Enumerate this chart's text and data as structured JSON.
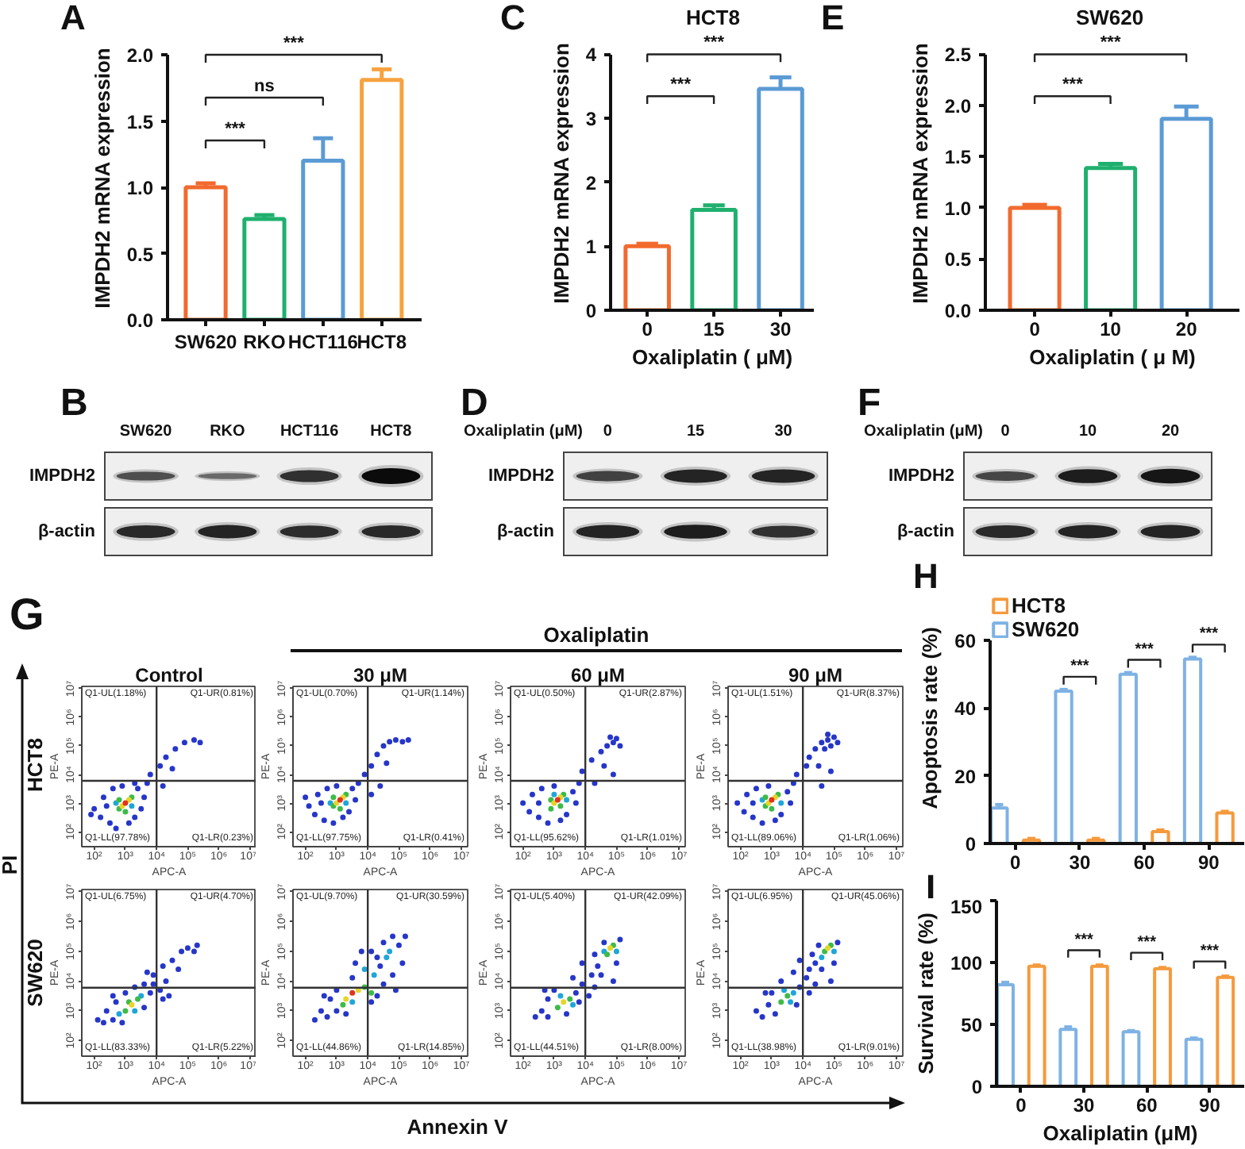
{
  "chart_data": [
    {
      "type": "bar",
      "annotations": [
        "A",
        "***",
        "ns",
        "***"
      ],
      "ylabel": "IMPDH2 mRNA expression",
      "categories": [
        "SW620",
        "RKO",
        "HCT116",
        "HCT8"
      ],
      "values": [
        1.0,
        0.76,
        1.2,
        1.81
      ],
      "colors": [
        "#f26a2e",
        "#1fb06e",
        "#5b9bd5",
        "#f7a23f"
      ],
      "errors": [
        [
          1.0,
          1.03
        ],
        [
          0.76,
          0.79
        ],
        [
          1.2,
          1.37
        ],
        [
          1.81,
          1.89
        ]
      ],
      "ylim": [
        0,
        2
      ],
      "yticks": [
        {
          "value": 0,
          "label": "0.0"
        },
        {
          "value": 0.5,
          "label": "0.5"
        },
        {
          "value": 1,
          "label": "1.0"
        },
        {
          "value": 1.5,
          "label": "1.5"
        },
        {
          "value": 2,
          "label": "2.0"
        }
      ]
    },
    {
      "type": "bar",
      "title": "HCT8",
      "annotations": [
        "C",
        "***",
        "***"
      ],
      "xlabel": "Oxaliplatin ( μM)",
      "ylabel": "IMPDH2 mRNA expression",
      "categories": [
        "0",
        "15",
        "30"
      ],
      "values": [
        1.0,
        1.57,
        3.46
      ],
      "colors": [
        "#f26a2e",
        "#1fb06e",
        "#5b9bd5"
      ],
      "errors": [
        [
          1.0,
          1.04
        ],
        [
          1.57,
          1.64
        ],
        [
          3.46,
          3.64
        ]
      ],
      "ylim": [
        0,
        4
      ],
      "yticks": [
        0,
        1,
        2,
        3,
        4
      ]
    },
    {
      "type": "bar",
      "title": "SW620",
      "annotations": [
        "E",
        "***",
        "***"
      ],
      "xlabel": "Oxaliplatin ( μ M)",
      "ylabel": "IMPDH2 mRNA expression",
      "categories": [
        "0",
        "10",
        "20"
      ],
      "values": [
        1.0,
        1.39,
        1.87
      ],
      "colors": [
        "#f26a2e",
        "#1fb06e",
        "#5b9bd5"
      ],
      "errors": [
        [
          1.0,
          1.03
        ],
        [
          1.39,
          1.43
        ],
        [
          1.87,
          1.99
        ]
      ],
      "ylim": [
        0,
        2.5
      ],
      "yticks": [
        {
          "value": 0,
          "label": "0.0"
        },
        {
          "value": 0.5,
          "label": "0.5"
        },
        {
          "value": 1,
          "label": "1.0"
        },
        {
          "value": 1.5,
          "label": "1.5"
        },
        {
          "value": 2,
          "label": "2.0"
        },
        {
          "value": 2.5,
          "label": "2.5"
        }
      ]
    },
    {
      "type": "other",
      "annotations": [
        "B"
      ],
      "categories": [
        "SW620",
        "RKO",
        "HCT116",
        "HCT8"
      ],
      "y_categories": [
        "IMPDH2",
        "β-actin"
      ]
    },
    {
      "type": "other",
      "annotations": [
        "D"
      ],
      "xlabel": "Oxaliplatin (μM)",
      "categories": [
        "0",
        "15",
        "30"
      ],
      "y_categories": [
        "IMPDH2",
        "β-actin"
      ]
    },
    {
      "type": "other",
      "annotations": [
        "F"
      ],
      "xlabel": "Oxaliplatin (μM)",
      "categories": [
        "0",
        "10",
        "20"
      ],
      "y_categories": [
        "IMPDH2",
        "β-actin"
      ]
    },
    {
      "type": "other",
      "annotations": [
        "G",
        "Oxaliplatin",
        "PI",
        "Annexin V"
      ],
      "y_categories": [
        "HCT8",
        "SW620"
      ]
    },
    {
      "type": "scatter",
      "title": "Control",
      "xlabel": "APC-A",
      "ylabel": "PE-A",
      "log": "xy",
      "marker": "circle",
      "xlim": [
        40,
        16000000
      ],
      "ylim": [
        30,
        12000000
      ],
      "xticks": [
        {
          "value": 100,
          "label": "10²"
        },
        {
          "value": 1000,
          "label": "10³"
        },
        {
          "value": 10000,
          "label": "10⁴"
        },
        {
          "value": 100000,
          "label": "10⁵"
        },
        {
          "value": 1000000,
          "label": "10⁶"
        },
        {
          "value": 10000000,
          "label": "10⁷"
        }
      ],
      "yticks": [
        {
          "value": 100,
          "label": "10²"
        },
        {
          "value": 1000,
          "label": "10³"
        },
        {
          "value": 10000,
          "label": "10⁴"
        },
        {
          "value": 100000,
          "label": "10⁵"
        },
        {
          "value": 1000000,
          "label": "10⁶"
        },
        {
          "value": 10000000,
          "label": "10⁷"
        }
      ],
      "ref_lines": [
        {
          "axis": "x",
          "value": 10000
        },
        {
          "axis": "y",
          "value": 6000
        }
      ],
      "annotations": [
        "Q1-UL(1.18%)",
        "Q1-UR(0.81%)",
        "Q1-LL(97.78%)",
        "Q1-LR(0.23%)"
      ],
      "series": [
        {
          "color": "#2636c9",
          "x": [
            100,
            160,
            200,
            320,
            400,
            500,
            790,
            2000,
            2500,
            4000,
            3200,
            250,
            79,
            1300,
            5000,
            2000,
            6300,
            13000,
            20000,
            40000,
            79000,
            160000,
            250000,
            32000,
            16000
          ],
          "values": [
            630,
            320,
            1600,
            200,
            3200,
            130,
            4000,
            320,
            3200,
            1600,
            630,
            790,
            400,
            200,
            5000,
            5000,
            10000,
            20000,
            40000,
            79000,
            130000,
            160000,
            130000,
            16000,
            4000
          ]
        },
        {
          "color": "#1fa6d8",
          "x": [
            1600,
            500
          ],
          "values": [
            790,
            1000
          ]
        },
        {
          "color": "#3dbb48",
          "x": [
            630,
            1600,
            1000,
            630
          ],
          "values": [
            630,
            1600,
            500,
            1300
          ]
        },
        {
          "color": "#e6d52a",
          "x": [
            790,
            1300
          ],
          "values": [
            790,
            1300
          ]
        },
        {
          "color": "#e0331d",
          "x": [
            1000
          ],
          "values": [
            1000
          ]
        }
      ]
    },
    {
      "type": "scatter",
      "title": "30 μM",
      "xlabel": "APC-A",
      "ylabel": "PE-A",
      "log": "xy",
      "marker": "circle",
      "xlim": [
        40,
        16000000
      ],
      "ylim": [
        30,
        12000000
      ],
      "xticks": [
        {
          "value": 100,
          "label": "10²"
        },
        {
          "value": 1000,
          "label": "10³"
        },
        {
          "value": 10000,
          "label": "10⁴"
        },
        {
          "value": 100000,
          "label": "10⁵"
        },
        {
          "value": 1000000,
          "label": "10⁶"
        },
        {
          "value": 10000000,
          "label": "10⁷"
        }
      ],
      "yticks": [
        {
          "value": 100,
          "label": "10²"
        },
        {
          "value": 1000,
          "label": "10³"
        },
        {
          "value": 10000,
          "label": "10⁴"
        },
        {
          "value": 100000,
          "label": "10⁵"
        },
        {
          "value": 1000000,
          "label": "10⁶"
        },
        {
          "value": 10000000,
          "label": "10⁷"
        }
      ],
      "ref_lines": [
        {
          "axis": "x",
          "value": 10000
        },
        {
          "axis": "y",
          "value": 6000
        }
      ],
      "annotations": [
        "Q1-UL(0.70%)",
        "Q1-UR(1.14%)",
        "Q1-LL(97.75%)",
        "Q1-LR(0.41%)"
      ],
      "series": [
        {
          "color": "#2636c9",
          "x": [
            130,
            200,
            250,
            400,
            500,
            790,
            1000,
            2500,
            3200,
            4000,
            320,
            100,
            1600,
            5000,
            7900,
            13000,
            20000,
            32000,
            50000,
            79000,
            130000,
            200000,
            40000,
            25000,
            13000
          ],
          "values": [
            790,
            400,
            2000,
            250,
            3200,
            200,
            4000,
            500,
            3200,
            1300,
            1000,
            1600,
            320,
            5000,
            10000,
            20000,
            50000,
            100000,
            140000,
            160000,
            140000,
            160000,
            25000,
            4000,
            2000
          ]
        },
        {
          "color": "#1fa6d8",
          "x": [
            2000,
            630
          ],
          "values": [
            1000,
            1000
          ]
        },
        {
          "color": "#3dbb48",
          "x": [
            790,
            2000,
            1300,
            790
          ],
          "values": [
            790,
            2000,
            630,
            1600
          ]
        },
        {
          "color": "#e6d52a",
          "x": [
            1000,
            1600
          ],
          "values": [
            1000,
            1600
          ]
        },
        {
          "color": "#e0331d",
          "x": [
            1300
          ],
          "values": [
            1300
          ]
        }
      ]
    },
    {
      "type": "scatter",
      "title": "60 μM",
      "xlabel": "APC-A",
      "ylabel": "PE-A",
      "log": "xy",
      "marker": "circle",
      "xlim": [
        40,
        16000000
      ],
      "ylim": [
        30,
        12000000
      ],
      "xticks": [
        {
          "value": 100,
          "label": "10²"
        },
        {
          "value": 1000,
          "label": "10³"
        },
        {
          "value": 10000,
          "label": "10⁴"
        },
        {
          "value": 100000,
          "label": "10⁵"
        },
        {
          "value": 1000000,
          "label": "10⁶"
        },
        {
          "value": 10000000,
          "label": "10⁷"
        }
      ],
      "yticks": [
        {
          "value": 100,
          "label": "10²"
        },
        {
          "value": 1000,
          "label": "10³"
        },
        {
          "value": 10000,
          "label": "10⁴"
        },
        {
          "value": 100000,
          "label": "10⁵"
        },
        {
          "value": 1000000,
          "label": "10⁶"
        },
        {
          "value": 10000000,
          "label": "10⁷"
        }
      ],
      "ref_lines": [
        {
          "axis": "x",
          "value": 10000
        },
        {
          "axis": "y",
          "value": 6000
        }
      ],
      "annotations": [
        "Q1-UL(0.50%)",
        "Q1-UR(2.87%)",
        "Q1-LL(95.62%)",
        "Q1-LR(1.01%)"
      ],
      "series": [
        {
          "color": "#2636c9",
          "x": [
            100,
            160,
            200,
            320,
            400,
            630,
            1000,
            2500,
            4000,
            5000,
            320,
            1600,
            6300,
            7900,
            16000,
            32000,
            50000,
            79000,
            100000,
            63000,
            130000,
            40000,
            79000,
            20000
          ],
          "values": [
            1000,
            500,
            2000,
            320,
            3200,
            200,
            4000,
            400,
            2500,
            1000,
            1000,
            250,
            5000,
            13000,
            32000,
            63000,
            100000,
            130000,
            180000,
            200000,
            100000,
            20000,
            10000,
            5000
          ]
        },
        {
          "color": "#1fa6d8",
          "x": [
            1000,
            2500
          ],
          "values": [
            2000,
            1300
          ]
        },
        {
          "color": "#3dbb48",
          "x": [
            790,
            1600,
            2000,
            790
          ],
          "values": [
            1300,
            790,
            2000,
            630
          ]
        },
        {
          "color": "#e6d52a",
          "x": [
            1000,
            1600
          ],
          "values": [
            1000,
            1600
          ]
        },
        {
          "color": "#e0331d",
          "x": [
            1300
          ],
          "values": [
            1300
          ]
        }
      ]
    },
    {
      "type": "scatter",
      "title": "90 μM",
      "xlabel": "APC-A",
      "ylabel": "PE-A",
      "log": "xy",
      "marker": "circle",
      "xlim": [
        40,
        16000000
      ],
      "ylim": [
        30,
        12000000
      ],
      "xticks": [
        {
          "value": 100,
          "label": "10²"
        },
        {
          "value": 1000,
          "label": "10³"
        },
        {
          "value": 10000,
          "label": "10⁴"
        },
        {
          "value": 100000,
          "label": "10⁵"
        },
        {
          "value": 1000000,
          "label": "10⁶"
        },
        {
          "value": 10000000,
          "label": "10⁷"
        }
      ],
      "yticks": [
        {
          "value": 100,
          "label": "10²"
        },
        {
          "value": 1000,
          "label": "10³"
        },
        {
          "value": 10000,
          "label": "10⁴"
        },
        {
          "value": 100000,
          "label": "10⁵"
        },
        {
          "value": 1000000,
          "label": "10⁶"
        },
        {
          "value": 10000000,
          "label": "10⁷"
        }
      ],
      "ref_lines": [
        {
          "axis": "x",
          "value": 10000
        },
        {
          "axis": "y",
          "value": 6000
        }
      ],
      "annotations": [
        "Q1-UL(1.51%)",
        "Q1-UR(8.37%)",
        "Q1-LL(89.06%)",
        "Q1-LR(1.06%)"
      ],
      "series": [
        {
          "color": "#2636c9",
          "x": [
            79,
            130,
            160,
            250,
            320,
            500,
            790,
            2000,
            3200,
            4000,
            250,
            1300,
            5000,
            6300,
            13000,
            16000,
            25000,
            40000,
            63000,
            79000,
            100000,
            50000,
            130000,
            63000,
            32000,
            79000,
            40000
          ],
          "values": [
            1000,
            500,
            2000,
            320,
            3200,
            200,
            4000,
            400,
            2500,
            1000,
            1000,
            250,
            5000,
            10000,
            20000,
            40000,
            79000,
            130000,
            160000,
            100000,
            200000,
            79000,
            130000,
            250000,
            20000,
            13000,
            4000
          ]
        },
        {
          "color": "#1fa6d8",
          "x": [
            2000,
            500
          ],
          "values": [
            1000,
            1300
          ]
        },
        {
          "color": "#3dbb48",
          "x": [
            630,
            1600,
            1000,
            630
          ],
          "values": [
            790,
            2000,
            630,
            1600
          ]
        },
        {
          "color": "#e6d52a",
          "x": [
            790,
            1300
          ],
          "values": [
            1000,
            1600
          ]
        },
        {
          "color": "#e0331d",
          "x": [
            1000
          ],
          "values": [
            1300
          ]
        }
      ]
    },
    {
      "type": "scatter",
      "xlabel": "APC-A",
      "ylabel": "PE-A",
      "log": "xy",
      "marker": "circle",
      "xlim": [
        40,
        16000000
      ],
      "ylim": [
        30,
        12000000
      ],
      "xticks": [
        {
          "value": 100,
          "label": "10²"
        },
        {
          "value": 1000,
          "label": "10³"
        },
        {
          "value": 10000,
          "label": "10⁴"
        },
        {
          "value": 100000,
          "label": "10⁵"
        },
        {
          "value": 1000000,
          "label": "10⁶"
        },
        {
          "value": 10000000,
          "label": "10⁷"
        }
      ],
      "yticks": [
        {
          "value": 100,
          "label": "10²"
        },
        {
          "value": 1000,
          "label": "10³"
        },
        {
          "value": 10000,
          "label": "10⁴"
        },
        {
          "value": 100000,
          "label": "10⁵"
        },
        {
          "value": 1000000,
          "label": "10⁶"
        },
        {
          "value": 10000000,
          "label": "10⁷"
        }
      ],
      "ref_lines": [
        {
          "axis": "x",
          "value": 10000
        },
        {
          "axis": "y",
          "value": 6000
        }
      ],
      "annotations": [
        "Q1-UL(6.75%)",
        "Q1-UR(4.70%)",
        "Q1-LL(83.33%)",
        "Q1-LR(5.22%)"
      ],
      "series": [
        {
          "color": "#2636c9",
          "x": [
            130,
            200,
            250,
            400,
            500,
            790,
            1000,
            4000,
            6300,
            7900,
            13000,
            16000,
            4000,
            2000,
            400,
            7900,
            20000,
            16000,
            32000,
            50000,
            63000,
            100000,
            160000,
            200000,
            25000,
            5000
          ],
          "values": [
            500,
            400,
            1000,
            500,
            2000,
            400,
            4000,
            1300,
            4000,
            7900,
            5000,
            2500,
            7900,
            6300,
            3200,
            16000,
            10000,
            32000,
            50000,
            25000,
            100000,
            130000,
            100000,
            160000,
            3200,
            20000
          ]
        },
        {
          "color": "#1fa6d8",
          "x": [
            630,
            3200,
            2000
          ],
          "values": [
            790,
            3200,
            1000
          ]
        },
        {
          "color": "#3dbb48",
          "x": [
            1000,
            2500,
            1300
          ],
          "values": [
            1000,
            2500,
            2000
          ]
        },
        {
          "color": "#e6d52a",
          "x": [
            1600
          ],
          "values": [
            1600
          ]
        }
      ]
    },
    {
      "type": "scatter",
      "xlabel": "APC-A",
      "ylabel": "PE-A",
      "log": "xy",
      "marker": "circle",
      "xlim": [
        40,
        16000000
      ],
      "ylim": [
        30,
        12000000
      ],
      "xticks": [
        {
          "value": 100,
          "label": "10²"
        },
        {
          "value": 1000,
          "label": "10³"
        },
        {
          "value": 10000,
          "label": "10⁴"
        },
        {
          "value": 100000,
          "label": "10⁵"
        },
        {
          "value": 1000000,
          "label": "10⁶"
        },
        {
          "value": 10000000,
          "label": "10⁷"
        }
      ],
      "yticks": [
        {
          "value": 100,
          "label": "10²"
        },
        {
          "value": 1000,
          "label": "10³"
        },
        {
          "value": 10000,
          "label": "10⁴"
        },
        {
          "value": 100000,
          "label": "10⁵"
        },
        {
          "value": 1000000,
          "label": "10⁶"
        },
        {
          "value": 10000000,
          "label": "10⁷"
        }
      ],
      "ref_lines": [
        {
          "axis": "x",
          "value": 10000
        },
        {
          "axis": "y",
          "value": 6000
        }
      ],
      "annotations": [
        "Q1-UL(9.70%)",
        "Q1-UR(30.59%)",
        "Q1-LL(44.86%)",
        "Q1-LR(14.85%)"
      ],
      "series": [
        {
          "color": "#2636c9",
          "x": [
            200,
            320,
            500,
            630,
            1000,
            1000,
            2000,
            3200,
            4000,
            13000,
            20000,
            32000,
            25000,
            13000,
            32000,
            63000,
            100000,
            130000,
            63000,
            160000,
            79000,
            6300,
            20000,
            400
          ],
          "values": [
            500,
            1000,
            630,
            2500,
            1000,
            5000,
            790,
            13000,
            40000,
            2000,
            3200,
            7900,
            32000,
            100000,
            200000,
            320000,
            160000,
            40000,
            16000,
            320000,
            5000,
            100000,
            63000,
            3200
          ]
        },
        {
          "color": "#1fa6d8",
          "x": [
            3200,
            16000,
            7900,
            40000,
            50000
          ],
          "values": [
            2000,
            16000,
            25000,
            63000,
            100000
          ]
        },
        {
          "color": "#3dbb48",
          "x": [
            7900,
            1600,
            13000
          ],
          "values": [
            6300,
            1600,
            4000
          ]
        },
        {
          "color": "#e6d52a",
          "x": [
            5000,
            2000
          ],
          "values": [
            5000,
            2500
          ]
        },
        {
          "color": "#e0331d",
          "x": [
            3200
          ],
          "values": [
            4000
          ]
        }
      ]
    },
    {
      "type": "scatter",
      "xlabel": "APC-A",
      "ylabel": "PE-A",
      "log": "xy",
      "marker": "circle",
      "xlim": [
        40,
        16000000
      ],
      "ylim": [
        30,
        12000000
      ],
      "xticks": [
        {
          "value": 100,
          "label": "10²"
        },
        {
          "value": 1000,
          "label": "10³"
        },
        {
          "value": 10000,
          "label": "10⁴"
        },
        {
          "value": 100000,
          "label": "10⁵"
        },
        {
          "value": 1000000,
          "label": "10⁶"
        },
        {
          "value": 10000000,
          "label": "10⁷"
        }
      ],
      "yticks": [
        {
          "value": 100,
          "label": "10²"
        },
        {
          "value": 1000,
          "label": "10³"
        },
        {
          "value": 10000,
          "label": "10⁴"
        },
        {
          "value": 100000,
          "label": "10⁵"
        },
        {
          "value": 1000000,
          "label": "10⁶"
        },
        {
          "value": 10000000,
          "label": "10⁷"
        }
      ],
      "ref_lines": [
        {
          "axis": "x",
          "value": 10000
        },
        {
          "axis": "y",
          "value": 6000
        }
      ],
      "annotations": [
        "Q1-UL(5.40%)",
        "Q1-UR(42.09%)",
        "Q1-LL(44.51%)",
        "Q1-LR(8.00%)"
      ],
      "series": [
        {
          "color": "#2636c9",
          "x": [
            250,
            400,
            630,
            630,
            1000,
            2500,
            5000,
            6300,
            7900,
            16000,
            13000,
            25000,
            20000,
            32000,
            40000,
            20000,
            100000,
            130000,
            79000,
            4000,
            7900,
            500
          ],
          "values": [
            630,
            1000,
            630,
            2500,
            5000,
            790,
            4000,
            2000,
            7900,
            16000,
            3200,
            32000,
            6300,
            16000,
            200000,
            79000,
            40000,
            250000,
            10000,
            13000,
            40000,
            5000
          ]
        },
        {
          "color": "#1fa6d8",
          "x": [
            1600,
            4000,
            40000,
            100000
          ],
          "values": [
            3200,
            1600,
            100000,
            100000
          ]
        },
        {
          "color": "#3dbb48",
          "x": [
            1300,
            3200,
            50000,
            79000
          ],
          "values": [
            1300,
            2500,
            79000,
            160000
          ]
        },
        {
          "color": "#e6d52a",
          "x": [
            2000,
            63000
          ],
          "values": [
            2000,
            130000
          ]
        }
      ]
    },
    {
      "type": "scatter",
      "xlabel": "APC-A",
      "ylabel": "PE-A",
      "log": "xy",
      "marker": "circle",
      "xlim": [
        40,
        16000000
      ],
      "ylim": [
        30,
        12000000
      ],
      "xticks": [
        {
          "value": 100,
          "label": "10²"
        },
        {
          "value": 1000,
          "label": "10³"
        },
        {
          "value": 10000,
          "label": "10⁴"
        },
        {
          "value": 100000,
          "label": "10⁵"
        },
        {
          "value": 1000000,
          "label": "10⁶"
        },
        {
          "value": 10000000,
          "label": "10⁷"
        }
      ],
      "yticks": [
        {
          "value": 100,
          "label": "10²"
        },
        {
          "value": 1000,
          "label": "10³"
        },
        {
          "value": 10000,
          "label": "10⁴"
        },
        {
          "value": 100000,
          "label": "10⁵"
        },
        {
          "value": 1000000,
          "label": "10⁶"
        },
        {
          "value": 10000000,
          "label": "10⁷"
        }
      ],
      "ref_lines": [
        {
          "axis": "x",
          "value": 10000
        },
        {
          "axis": "y",
          "value": 6000
        }
      ],
      "annotations": [
        "Q1-UL(6.95%)",
        "Q1-UR(45.06%)",
        "Q1-LL(38.98%)",
        "Q1-LR(9.01%)"
      ],
      "series": [
        {
          "color": "#2636c9",
          "x": [
            320,
            500,
            790,
            1000,
            1300,
            2000,
            6300,
            7900,
            13000,
            16000,
            16000,
            25000,
            25000,
            40000,
            32000,
            20000,
            100000,
            130000,
            79000,
            5000,
            7900,
            630
          ],
          "values": [
            1000,
            630,
            1600,
            4000,
            790,
            10000,
            1600,
            6300,
            13000,
            25000,
            4000,
            40000,
            7900,
            25000,
            160000,
            79000,
            40000,
            200000,
            10000,
            20000,
            50000,
            4000
          ]
        },
        {
          "color": "#1fa6d8",
          "x": [
            5000,
            2500,
            4000,
            40000,
            100000
          ],
          "values": [
            4000,
            5000,
            2000,
            63000,
            100000
          ]
        },
        {
          "color": "#3dbb48",
          "x": [
            3200,
            2000,
            50000,
            79000
          ],
          "values": [
            3200,
            2000,
            100000,
            160000
          ]
        },
        {
          "color": "#e6d52a",
          "x": [
            63000
          ],
          "values": [
            130000
          ]
        }
      ]
    },
    {
      "type": "bar",
      "annotations": [
        "H",
        "***",
        "***",
        "***"
      ],
      "ylabel": "Apoptosis rate (%)",
      "categories": [
        "0",
        "30",
        "60",
        "90"
      ],
      "series": [
        {
          "name": "SW620",
          "color": "#7eb2e4",
          "values": [
            10.5,
            45,
            50,
            54.5
          ],
          "errors": [
            [
              10.5,
              11.5
            ],
            [
              45,
              45.5
            ],
            [
              50,
              50.5
            ],
            [
              54.5,
              55
            ]
          ]
        },
        {
          "name": "HCT8",
          "color": "#f59a3c",
          "values": [
            1,
            1,
            3.5,
            9
          ],
          "errors": [
            [
              1,
              1.5
            ],
            [
              1,
              1.5
            ],
            [
              3.5,
              4
            ],
            [
              9,
              9.5
            ]
          ]
        }
      ],
      "ylim": [
        0,
        60
      ],
      "yticks": [
        0,
        20,
        40,
        60
      ],
      "legend": "top left"
    },
    {
      "type": "bar",
      "annotations": [
        "I",
        "***",
        "***",
        "***"
      ],
      "xlabel": "Oxaliplatin (μM)",
      "ylabel": "Survival rate (%)",
      "categories": [
        "0",
        "30",
        "60",
        "90"
      ],
      "series": [
        {
          "color": "#7eb2e4",
          "values": [
            82,
            46,
            44,
            38
          ],
          "errors": [
            [
              82,
              84
            ],
            [
              46,
              48
            ],
            [
              44,
              45
            ],
            [
              38,
              39
            ]
          ]
        },
        {
          "color": "#f59a3c",
          "values": [
            97,
            97,
            95,
            88
          ],
          "errors": [
            [
              97,
              98
            ],
            [
              97,
              98
            ],
            [
              95,
              96
            ],
            [
              88,
              89
            ]
          ]
        }
      ],
      "ylim": [
        0,
        150
      ],
      "yticks": [
        0,
        50,
        100,
        150
      ]
    }
  ]
}
